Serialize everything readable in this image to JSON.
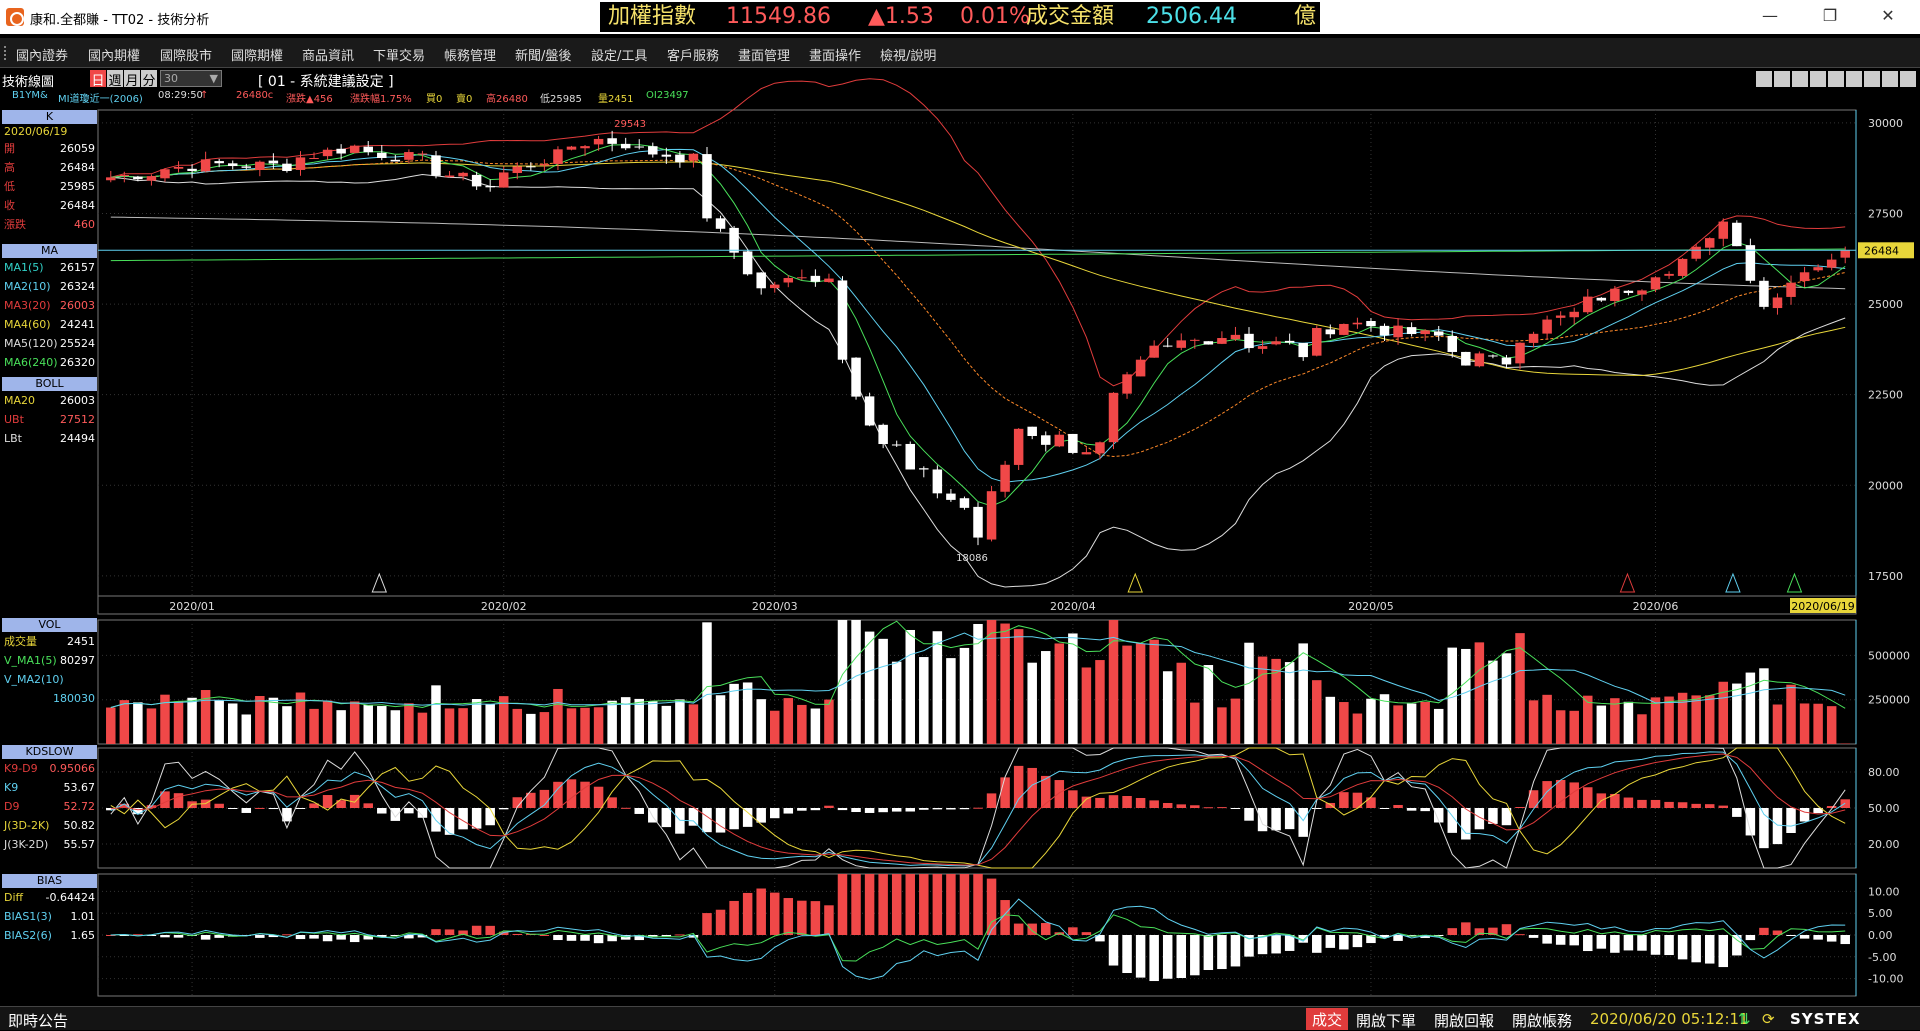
{
  "window": {
    "title": "康和.全都賺 - TT02 - 技術分析",
    "minimize": "—",
    "restore": "❐",
    "close": "✕"
  },
  "ticker": {
    "index_label": "加權指數",
    "index_value": "11549.86",
    "change": "▲1.53",
    "change_pct": "0.01%",
    "turnover_label": "成交金額",
    "turnover_value": "2506.44",
    "unit": "億"
  },
  "menu": [
    "國內證券",
    "國內期權",
    "國際股市",
    "國際期權",
    "商品資訊",
    "下單交易",
    "帳務管理",
    "新聞/盤後",
    "設定/工具",
    "客戶服務",
    "畫面管理",
    "畫面操作",
    "檢視/說明"
  ],
  "toolbar": {
    "tool_name": "技術線圖",
    "periods": [
      "日",
      "週",
      "月",
      "分"
    ],
    "count_value": "30",
    "layout_label": "[ 01 - 系統建議設定 ]"
  },
  "infobar": {
    "symbol": "B1YM&",
    "contract": "MI道瓊近一(2006)",
    "time": "08:29:50",
    "price": "26480c",
    "up_arrow": "↑",
    "change": "漲跌▲456",
    "change_pct": "漲跌幅1.75%",
    "buy": "買0",
    "sell": "賣0",
    "high": "高26480",
    "low": "低25985",
    "volume": "量2451",
    "oi": "OI23497"
  },
  "panels": {
    "k": {
      "title": "K",
      "date": "2020/06/19",
      "rows": [
        {
          "label": "開",
          "value": "26059",
          "color": "#e03c3c"
        },
        {
          "label": "高",
          "value": "26484",
          "color": "#e03c3c"
        },
        {
          "label": "低",
          "value": "25985",
          "color": "#e03c3c"
        },
        {
          "label": "收",
          "value": "26484",
          "color": "#e03c3c"
        },
        {
          "label": "漲跌",
          "value": "460",
          "color": "#e03c3c"
        }
      ]
    },
    "ma": {
      "title": "MA",
      "rows": [
        {
          "label": "MA1(5)",
          "value": "26157",
          "color": "#32d1c8"
        },
        {
          "label": "MA2(10)",
          "value": "26324",
          "color": "#5fd0f0"
        },
        {
          "label": "MA3(20)",
          "value": "26003",
          "color": "#e03c3c"
        },
        {
          "label": "MA4(60)",
          "value": "24241",
          "color": "#e8d63a"
        },
        {
          "label": "MA5(120)",
          "value": "25524",
          "color": "#dddddd"
        },
        {
          "label": "MA6(240)",
          "value": "26320",
          "color": "#49e05a"
        }
      ]
    },
    "boll": {
      "title": "BOLL",
      "rows": [
        {
          "label": "MA20",
          "value": "26003",
          "color": "#e8d63a"
        },
        {
          "label": "UBt",
          "value": "27512",
          "color": "#e03c3c"
        },
        {
          "label": "LBt",
          "value": "24494",
          "color": "#dddddd"
        }
      ]
    },
    "vol": {
      "title": "VOL",
      "rows": [
        {
          "label": "成交量",
          "value": "2451",
          "color": "#e8d63a"
        },
        {
          "label": "V_MA1(5)",
          "value": "80297",
          "color": "#49e05a"
        },
        {
          "label": "V_MA2(10)",
          "value": "",
          "color": "#5fd0f0"
        },
        {
          "label": "",
          "value": "180030",
          "color": "#5fd0f0"
        }
      ]
    },
    "kd": {
      "title": "KDSLOW",
      "rows": [
        {
          "label": "K9-D9",
          "value": "0.95066",
          "color": "#e03c3c"
        },
        {
          "label": "K9",
          "value": "53.67",
          "color": "#5fd0f0"
        },
        {
          "label": "D9",
          "value": "52.72",
          "color": "#e03c3c"
        },
        {
          "label": "J(3D-2K)",
          "value": "50.82",
          "color": "#e8d63a"
        },
        {
          "label": "J(3K-2D)",
          "value": "55.57",
          "color": "#dddddd"
        }
      ]
    },
    "bias": {
      "title": "BIAS",
      "rows": [
        {
          "label": "Diff",
          "value": "-0.64424",
          "color": "#e8d63a"
        },
        {
          "label": "BIAS1(3)",
          "value": "1.01",
          "color": "#5fd0f0"
        },
        {
          "label": "BIAS2(6)",
          "value": "1.65",
          "color": "#5fd0f0"
        }
      ]
    }
  },
  "axes": {
    "price_ticks": [
      "30000",
      "27500",
      "25000",
      "22500",
      "20000",
      "17500"
    ],
    "price_marker": "26484",
    "dates": [
      "2020/01",
      "2020/02",
      "2020/03",
      "2020/04",
      "2020/05",
      "2020/06"
    ],
    "cursor_date": "2020/06/19",
    "high_label": "29543",
    "low_label": "18086",
    "vol_ticks": [
      "500000",
      "250000"
    ],
    "kd_ticks": [
      "80.00",
      "50.00",
      "20.00"
    ],
    "bias_ticks": [
      "10.00",
      "5.00",
      "0.00",
      "-5.00",
      "-10.00"
    ]
  },
  "statusbar": {
    "bulletin": "即時公告",
    "trade": "成交",
    "open_order": "開啟下單",
    "open_report": "開啟回報",
    "open_account": "開啟帳務",
    "datetime": "2020/06/20 05:12:11",
    "brand": "SYSTEX"
  },
  "chart_data": {
    "type": "candlestick",
    "anchors": [
      {
        "date": "2019-12-24",
        "close": 28500
      },
      {
        "date": "2020-01-02",
        "close": 28860
      },
      {
        "date": "2020-01-10",
        "close": 28820
      },
      {
        "date": "2020-01-17",
        "close": 29350
      },
      {
        "date": "2020-01-24",
        "close": 28990
      },
      {
        "date": "2020-01-31",
        "close": 28250
      },
      {
        "date": "2020-02-07",
        "close": 29100
      },
      {
        "date": "2020-02-12",
        "close": 29540
      },
      {
        "date": "2020-02-21",
        "close": 29000
      },
      {
        "date": "2020-02-28",
        "close": 25400
      },
      {
        "date": "2020-03-06",
        "close": 25800
      },
      {
        "date": "2020-03-12",
        "close": 21200
      },
      {
        "date": "2020-03-18",
        "close": 19900
      },
      {
        "date": "2020-03-23",
        "close": 18600
      },
      {
        "date": "2020-03-26",
        "close": 21600
      },
      {
        "date": "2020-04-03",
        "close": 21000
      },
      {
        "date": "2020-04-09",
        "close": 23600
      },
      {
        "date": "2020-04-17",
        "close": 24200
      },
      {
        "date": "2020-04-24",
        "close": 23700
      },
      {
        "date": "2020-04-29",
        "close": 24500
      },
      {
        "date": "2020-05-08",
        "close": 24100
      },
      {
        "date": "2020-05-14",
        "close": 23300
      },
      {
        "date": "2020-05-20",
        "close": 24500
      },
      {
        "date": "2020-06-02",
        "close": 26000
      },
      {
        "date": "2020-06-08",
        "close": 27400
      },
      {
        "date": "2020-06-11",
        "close": 25000
      },
      {
        "date": "2020-06-19",
        "close": 26484
      }
    ],
    "price_range": [
      17000,
      30300
    ],
    "vol_range": [
      0,
      700000
    ],
    "kd_range": [
      0,
      100
    ],
    "bias_range": [
      -14,
      14
    ],
    "series": [
      "K",
      "MA1(5)",
      "MA2(10)",
      "MA3(20)",
      "MA4(60)",
      "MA5(120)",
      "MA6(240)",
      "UBt",
      "LBt"
    ]
  },
  "colors": {
    "up": "#f04848",
    "down": "#ffffff",
    "grid": "#333333",
    "axis": "#dddddd",
    "ma1": "#32d1c8",
    "ma2": "#5fd0f0",
    "ma3": "#ff8a2a",
    "ma4": "#e8d63a",
    "ma5": "#bbbbbb",
    "ma6": "#49e05a",
    "ub": "#e03c3c",
    "lb": "#dddddd"
  }
}
